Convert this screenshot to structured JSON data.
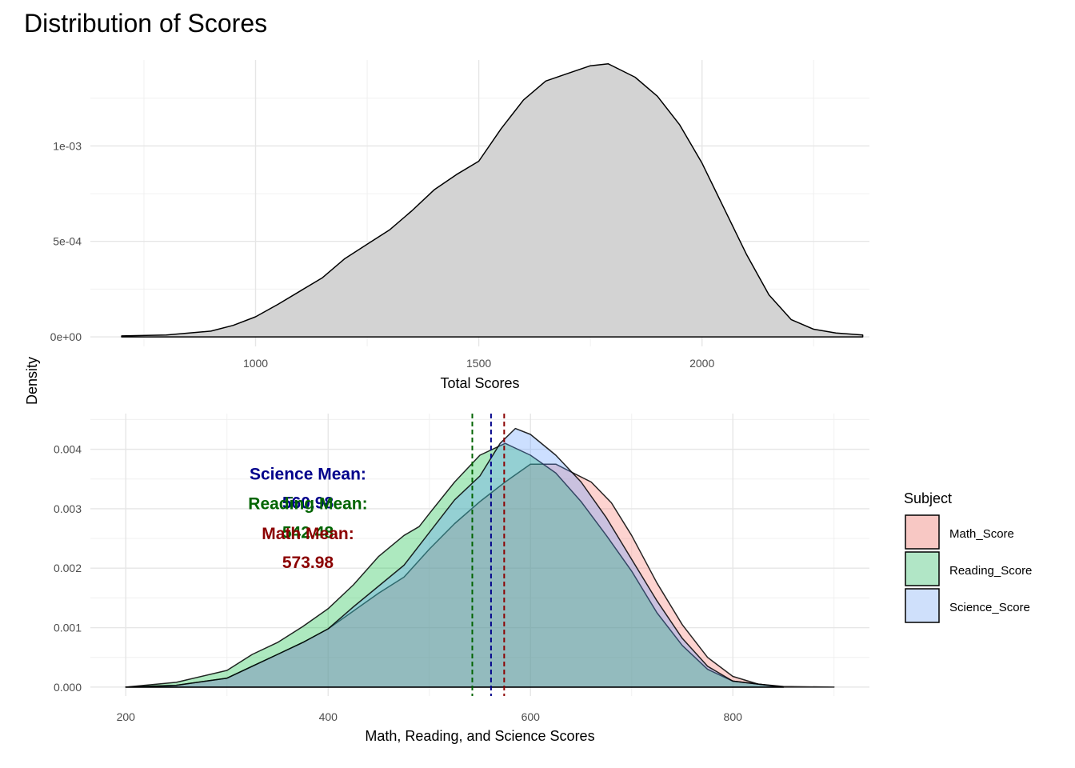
{
  "title": "Distribution of Scores",
  "shared_ylabel": "Density",
  "chart_data": [
    {
      "type": "area",
      "xlabel": "Total Scores",
      "ylabel": "Density",
      "xlim": [
        630,
        2375
      ],
      "ylim": [
        -5e-05,
        0.00145
      ],
      "x_ticks": [
        1000,
        1500,
        2000
      ],
      "x_tick_labels": [
        "1000",
        "1500",
        "2000"
      ],
      "y_ticks": [
        0,
        0.0005,
        0.001
      ],
      "y_tick_labels": [
        "0e+00",
        "5e-04",
        "1e-03"
      ],
      "grid": true,
      "series": [
        {
          "fill": "#d3d3d3",
          "x": [
            700,
            800,
            900,
            950,
            1000,
            1050,
            1100,
            1150,
            1200,
            1250,
            1300,
            1350,
            1400,
            1450,
            1500,
            1550,
            1600,
            1650,
            1700,
            1750,
            1790,
            1850,
            1900,
            1950,
            2000,
            2050,
            2100,
            2150,
            2200,
            2250,
            2300,
            2360
          ],
          "y": [
            5e-06,
            1e-05,
            3e-05,
            6e-05,
            0.000105,
            0.00017,
            0.00024,
            0.00031,
            0.00041,
            0.000485,
            0.00056,
            0.00066,
            0.00077,
            0.00085,
            0.00092,
            0.00109,
            0.00124,
            0.00134,
            0.00138,
            0.00142,
            0.00143,
            0.00136,
            0.00126,
            0.00111,
            0.00091,
            0.00067,
            0.00043,
            0.00022,
            9e-05,
            4e-05,
            2e-05,
            1e-05
          ]
        }
      ]
    },
    {
      "type": "area",
      "xlabel": "Math, Reading, and Science Scores",
      "ylabel": "Density",
      "xlim": [
        165,
        935
      ],
      "ylim": [
        -0.00015,
        0.0046
      ],
      "x_ticks": [
        200,
        400,
        600,
        800
      ],
      "x_tick_labels": [
        "200",
        "400",
        "600",
        "800"
      ],
      "y_ticks": [
        0,
        0.001,
        0.002,
        0.003,
        0.004
      ],
      "y_tick_labels": [
        "0.000",
        "0.001",
        "0.002",
        "0.003",
        "0.004"
      ],
      "grid": true,
      "legend": {
        "title": "Subject",
        "position": "right",
        "entries": [
          {
            "label": "Math_Score",
            "fill": "#f8c8c4"
          },
          {
            "label": "Reading_Score",
            "fill": "#b1e6c6"
          },
          {
            "label": "Science_Score",
            "fill": "#cfe0fb"
          }
        ]
      },
      "series": [
        {
          "name": "Math_Score",
          "fill": "#f8766d",
          "x": [
            200,
            250,
            300,
            325,
            350,
            375,
            400,
            425,
            450,
            475,
            500,
            525,
            550,
            575,
            600,
            625,
            640,
            660,
            680,
            700,
            725,
            750,
            775,
            800,
            825,
            850,
            900
          ],
          "y": [
            0.0,
            3e-05,
            0.00015,
            0.00035,
            0.00055,
            0.00075,
            0.00098,
            0.00128,
            0.00158,
            0.00185,
            0.00232,
            0.00275,
            0.00312,
            0.00345,
            0.00375,
            0.00375,
            0.00362,
            0.00345,
            0.0031,
            0.00255,
            0.00175,
            0.00105,
            0.0005,
            0.00018,
            5e-05,
            1e-05,
            0.0
          ]
        },
        {
          "name": "Reading_Score",
          "fill": "#00ba38",
          "x": [
            200,
            250,
            300,
            325,
            350,
            375,
            400,
            425,
            450,
            475,
            490,
            500,
            525,
            550,
            575,
            600,
            625,
            650,
            675,
            700,
            725,
            750,
            775,
            800,
            850
          ],
          "y": [
            0.0,
            8e-05,
            0.00028,
            0.00055,
            0.00075,
            0.00102,
            0.00132,
            0.00172,
            0.0022,
            0.00255,
            0.0027,
            0.00292,
            0.00345,
            0.0039,
            0.0041,
            0.0039,
            0.0036,
            0.00312,
            0.00255,
            0.00195,
            0.00125,
            0.0007,
            0.0003,
            0.0001,
            0.0
          ]
        },
        {
          "name": "Science_Score",
          "fill": "#619cff",
          "x": [
            200,
            250,
            300,
            325,
            350,
            375,
            400,
            425,
            450,
            475,
            500,
            525,
            550,
            570,
            585,
            600,
            625,
            650,
            675,
            700,
            725,
            750,
            775,
            800,
            850
          ],
          "y": [
            0.0,
            3e-05,
            0.00015,
            0.00035,
            0.00055,
            0.00075,
            0.00098,
            0.00135,
            0.0017,
            0.00205,
            0.0026,
            0.00315,
            0.00355,
            0.0041,
            0.00435,
            0.00425,
            0.0039,
            0.00345,
            0.00285,
            0.00215,
            0.00145,
            0.00082,
            0.00035,
            0.0001,
            0.0
          ]
        }
      ],
      "mean_lines": [
        {
          "subject": "Reading_Score",
          "value": 542.48,
          "color": "#006400"
        },
        {
          "subject": "Science_Score",
          "value": 560.98,
          "color": "#00008b"
        },
        {
          "subject": "Math_Score",
          "value": 573.98,
          "color": "#8b0000"
        }
      ],
      "annotations": [
        {
          "line1": "Science Mean:",
          "line2": "560.98",
          "color": "#00008b",
          "x": 380,
          "y": 0.00345
        },
        {
          "line1": "Reading Mean:",
          "line2": "542.48",
          "color": "#006400",
          "x": 380,
          "y": 0.00295
        },
        {
          "line1": "Math Mean:",
          "line2": "573.98",
          "color": "#8b0000",
          "x": 380,
          "y": 0.00245
        }
      ]
    }
  ]
}
